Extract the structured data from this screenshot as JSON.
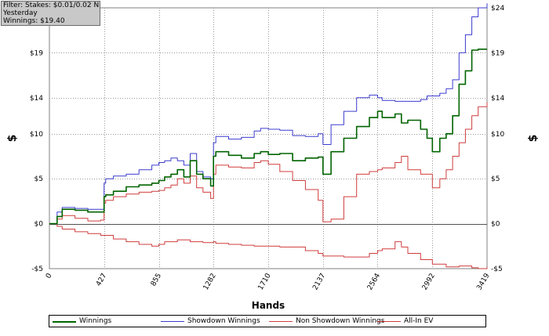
{
  "filter_box": {
    "lines": [
      "Filter: Stakes: $0.01/0.02 NL",
      "Yesterday",
      "Winnings: $19.40"
    ]
  },
  "chart_data": {
    "type": "line",
    "xlabel": "Hands",
    "ylabel": "$",
    "x_ticks": [
      0,
      427,
      855,
      1282,
      1710,
      2137,
      2564,
      2992,
      3419
    ],
    "xlim": [
      0,
      3419
    ],
    "ylim": [
      -5,
      24
    ],
    "y_ticks": [
      -5,
      0,
      5,
      10,
      14,
      19,
      24
    ],
    "y_tick_labels": [
      "-$5",
      "$0",
      "$5",
      "$10",
      "$14",
      "$19",
      "$24"
    ],
    "grid": true,
    "legend_position": "bottom",
    "series": [
      {
        "name": "Winnings",
        "color": "#006400",
        "x": [
          0,
          60,
          100,
          200,
          300,
          400,
          427,
          440,
          500,
          600,
          700,
          800,
          855,
          900,
          950,
          1000,
          1050,
          1100,
          1150,
          1200,
          1260,
          1282,
          1300,
          1400,
          1500,
          1600,
          1650,
          1710,
          1800,
          1900,
          2000,
          2100,
          2137,
          2200,
          2300,
          2400,
          2500,
          2564,
          2600,
          2700,
          2750,
          2800,
          2900,
          2950,
          2992,
          3050,
          3100,
          3150,
          3200,
          3250,
          3300,
          3350,
          3419
        ],
        "y": [
          0,
          0.8,
          1.6,
          1.5,
          1.3,
          1.3,
          3.0,
          3.2,
          3.6,
          4.1,
          4.3,
          4.5,
          4.8,
          5.2,
          5.5,
          6.0,
          5.2,
          7.0,
          5.5,
          5.0,
          4.2,
          7.5,
          8.0,
          7.6,
          7.3,
          7.8,
          8.0,
          7.7,
          7.8,
          7.0,
          7.3,
          7.4,
          5.5,
          8.0,
          9.5,
          10.8,
          11.8,
          12.5,
          11.8,
          12.2,
          11.2,
          11.5,
          10.5,
          9.5,
          8.0,
          9.5,
          10.0,
          12.0,
          15.5,
          17.0,
          19.3,
          19.4,
          19.4
        ]
      },
      {
        "name": "Showdown Winnings",
        "color": "#3c3cd0",
        "x": [
          0,
          60,
          100,
          200,
          300,
          400,
          427,
          440,
          500,
          600,
          700,
          800,
          855,
          900,
          950,
          1000,
          1050,
          1100,
          1150,
          1200,
          1260,
          1282,
          1300,
          1400,
          1500,
          1600,
          1650,
          1710,
          1800,
          1900,
          2000,
          2100,
          2137,
          2200,
          2300,
          2400,
          2500,
          2564,
          2600,
          2700,
          2750,
          2800,
          2900,
          2950,
          2992,
          3050,
          3100,
          3150,
          3200,
          3250,
          3300,
          3350,
          3419
        ],
        "y": [
          0,
          1.3,
          1.8,
          1.7,
          1.6,
          1.6,
          4.5,
          5.0,
          5.3,
          5.5,
          6.0,
          6.5,
          6.8,
          7.0,
          7.3,
          7.0,
          6.5,
          7.8,
          5.8,
          5.2,
          5.0,
          9.0,
          9.7,
          9.4,
          9.6,
          10.3,
          10.6,
          10.5,
          10.4,
          9.8,
          9.7,
          10.0,
          8.8,
          11.0,
          12.5,
          14.0,
          14.3,
          14.0,
          13.7,
          13.6,
          13.6,
          13.6,
          13.8,
          14.2,
          14.2,
          14.5,
          15.0,
          16.0,
          19.0,
          21.0,
          23.0,
          24.0,
          24.5
        ]
      },
      {
        "name": "Non Showdown Winnings",
        "color": "#d03c3c",
        "x": [
          0,
          60,
          100,
          200,
          300,
          400,
          427,
          500,
          600,
          700,
          800,
          855,
          900,
          1000,
          1100,
          1200,
          1282,
          1300,
          1400,
          1500,
          1600,
          1710,
          1800,
          1900,
          2000,
          2100,
          2137,
          2200,
          2300,
          2400,
          2500,
          2564,
          2600,
          2700,
          2750,
          2800,
          2900,
          2992,
          3100,
          3200,
          3300,
          3350,
          3419
        ],
        "y": [
          0,
          -0.3,
          -0.6,
          -0.9,
          -1.1,
          -1.3,
          -1.3,
          -1.7,
          -2.0,
          -2.3,
          -2.5,
          -2.3,
          -2.0,
          -1.8,
          -2.0,
          -2.1,
          -2.0,
          -2.2,
          -2.3,
          -2.4,
          -2.5,
          -2.5,
          -2.6,
          -2.6,
          -3.0,
          -3.3,
          -3.6,
          -3.6,
          -3.7,
          -3.7,
          -3.3,
          -3.0,
          -2.8,
          -2.0,
          -2.6,
          -3.3,
          -4.0,
          -4.5,
          -4.8,
          -4.7,
          -4.9,
          -5.0,
          -4.8
        ]
      },
      {
        "name": "All-In EV",
        "color": "#d03c3c",
        "x": [
          0,
          60,
          100,
          200,
          300,
          400,
          427,
          440,
          500,
          600,
          700,
          800,
          855,
          900,
          950,
          1000,
          1050,
          1100,
          1150,
          1200,
          1260,
          1282,
          1300,
          1400,
          1500,
          1600,
          1650,
          1710,
          1800,
          1900,
          2000,
          2100,
          2137,
          2200,
          2300,
          2400,
          2500,
          2564,
          2600,
          2700,
          2750,
          2800,
          2900,
          2992,
          3050,
          3100,
          3150,
          3200,
          3250,
          3300,
          3350,
          3419
        ],
        "y": [
          0,
          0.5,
          0.9,
          0.6,
          0.3,
          0.4,
          2.3,
          2.6,
          3.0,
          3.3,
          3.5,
          3.6,
          3.7,
          4.0,
          4.3,
          5.0,
          4.5,
          5.3,
          4.0,
          3.5,
          2.8,
          5.5,
          6.5,
          6.3,
          6.2,
          6.8,
          7.0,
          6.6,
          5.8,
          4.8,
          3.8,
          2.6,
          0.2,
          0.5,
          3.0,
          5.5,
          5.8,
          6.0,
          6.2,
          6.8,
          7.5,
          6.0,
          5.5,
          4.0,
          5.0,
          6.0,
          7.5,
          9.0,
          10.5,
          12.0,
          13.0,
          13.5
        ]
      }
    ]
  }
}
